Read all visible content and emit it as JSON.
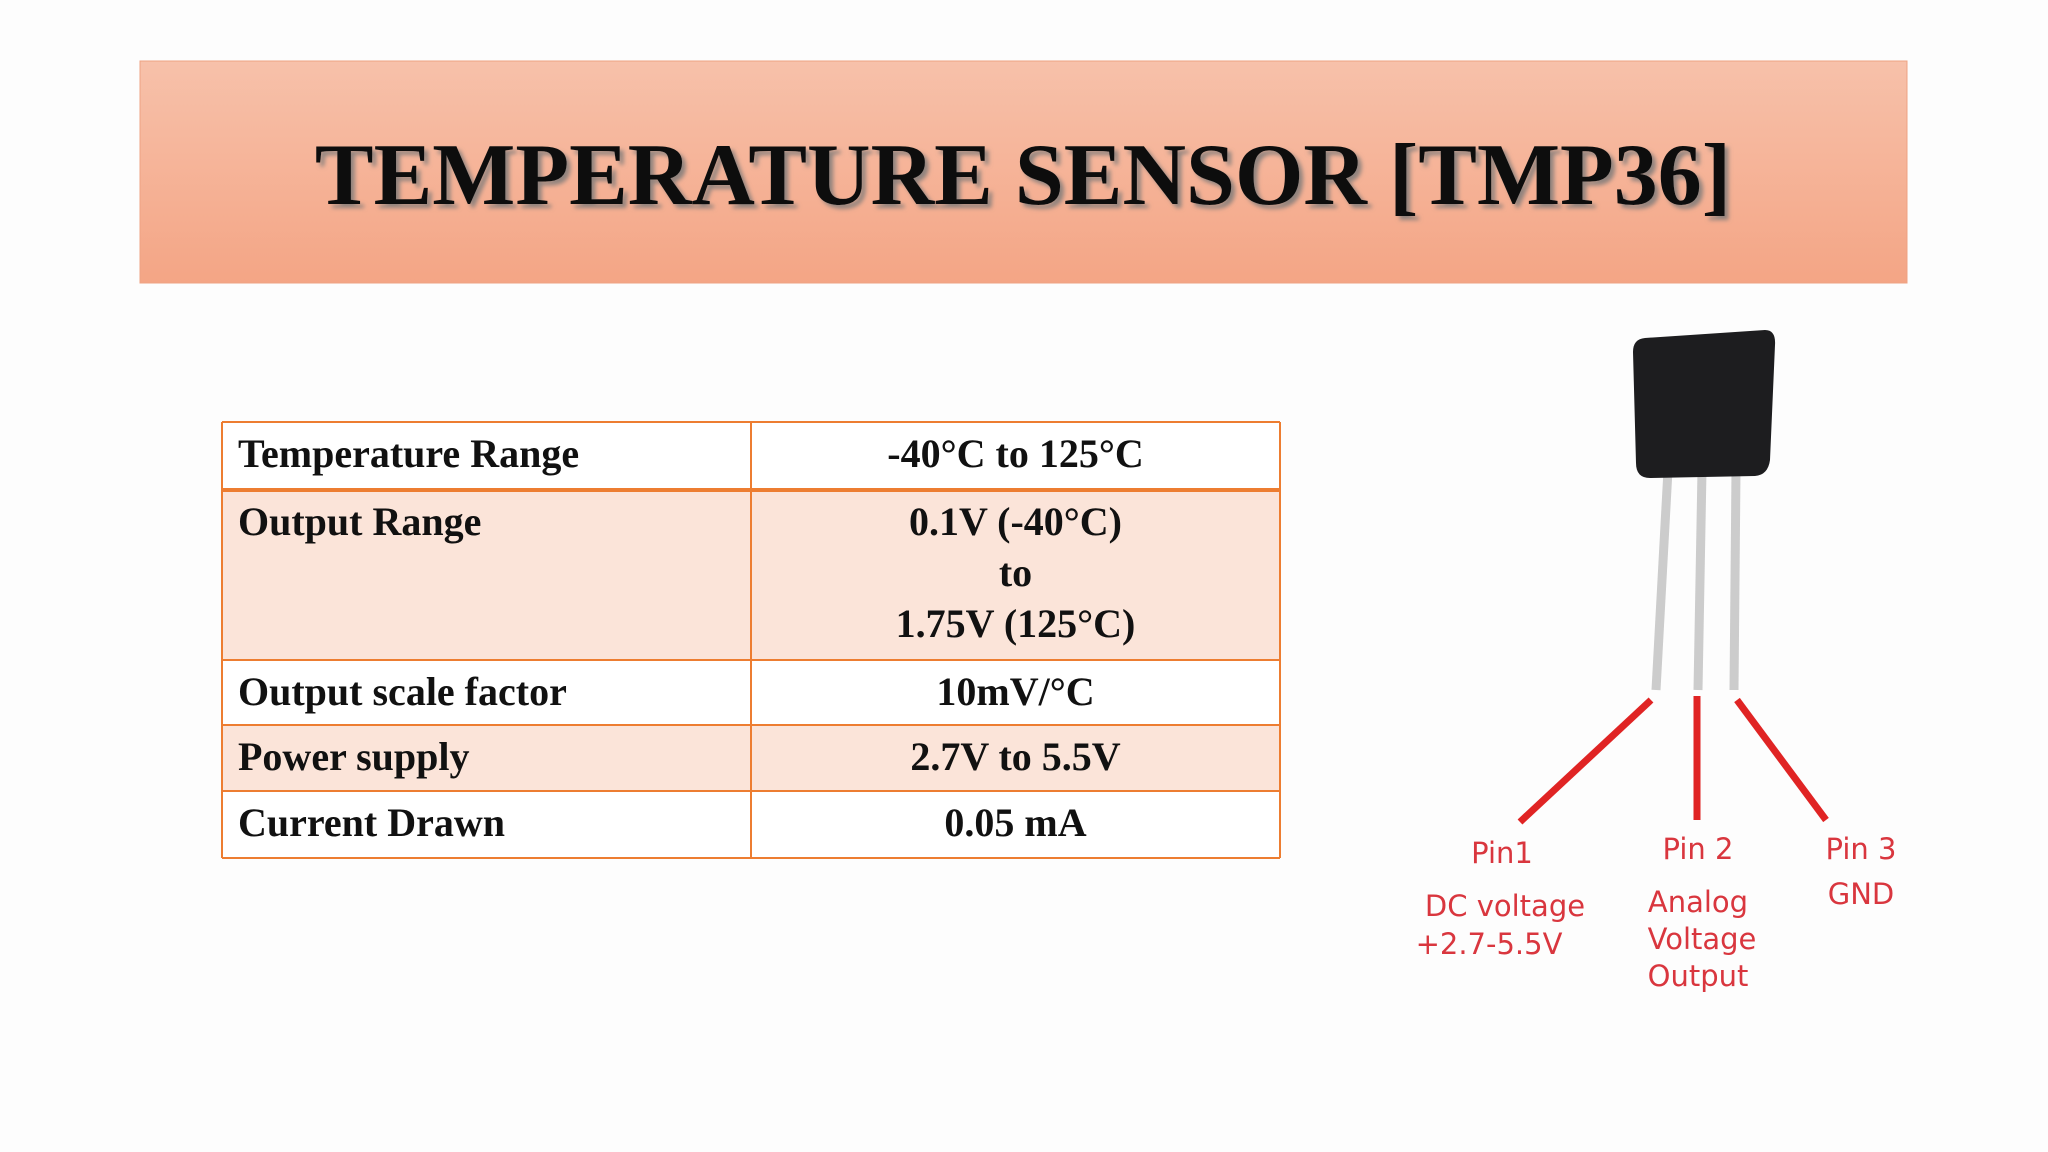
{
  "header": {
    "title": "TEMPERATURE SENSOR [TMP36]"
  },
  "table": {
    "rows": [
      [
        "Temperature Range",
        "-40°C to 125°C"
      ],
      [
        "Output Range",
        [
          "0.1V (-40°C)",
          "to",
          "1.75V (125°C)"
        ]
      ],
      [
        "Output scale factor",
        "10mV/°C"
      ],
      [
        "Power supply",
        "2.7V to 5.5V"
      ],
      [
        "Current Drawn",
        "0.05 mA"
      ]
    ]
  },
  "figure": {
    "pins": [
      {
        "label": "Pin1",
        "desc": [
          "DC voltage",
          "+2.7-5.5V"
        ]
      },
      {
        "label": "Pin 2",
        "desc": [
          "Analog",
          "Voltage",
          "Output"
        ]
      },
      {
        "label": "Pin 3",
        "desc": [
          "GND"
        ]
      }
    ]
  }
}
